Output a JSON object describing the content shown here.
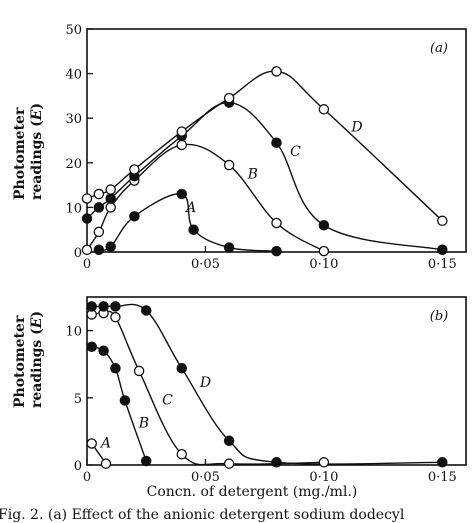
{
  "figure": {
    "xlabel": "Concn. of detergent (mg./ml.)",
    "caption": "Fig. 2. (a) Effect of the anionic detergent sodium dodecyl"
  },
  "chart_data": [
    {
      "type": "line",
      "panel_label": "(a)",
      "ylabel": [
        "Photometer",
        "readings (E)"
      ],
      "xlim": [
        0,
        0.16
      ],
      "ylim": [
        0,
        50
      ],
      "x_ticks": [
        0,
        0.05,
        0.1,
        0.15
      ],
      "x_tick_labels": [
        "0",
        "0·05",
        "0·10",
        "0·15"
      ],
      "y_ticks": [
        0,
        10,
        20,
        30,
        40,
        50
      ],
      "y_tick_labels": [
        "0",
        "10",
        "20",
        "30",
        "40",
        "50"
      ],
      "grid": false,
      "series": [
        {
          "name": "A",
          "marker": "filled",
          "x": [
            0.005,
            0.01,
            0.02,
            0.04,
            0.045,
            0.06,
            0.08
          ],
          "y": [
            0.5,
            1.2,
            8.0,
            13.0,
            5.0,
            1.0,
            0.2
          ]
        },
        {
          "name": "B",
          "marker": "open",
          "x": [
            0.0,
            0.005,
            0.01,
            0.02,
            0.04,
            0.06,
            0.08,
            0.1
          ],
          "y": [
            0.5,
            4.5,
            10.0,
            16.0,
            24.0,
            19.5,
            6.5,
            0.2
          ]
        },
        {
          "name": "C",
          "marker": "filled",
          "x": [
            0.0,
            0.005,
            0.01,
            0.02,
            0.04,
            0.06,
            0.08,
            0.1,
            0.15
          ],
          "y": [
            7.5,
            10.0,
            12.0,
            17.0,
            26.0,
            33.5,
            24.5,
            6.0,
            0.5
          ]
        },
        {
          "name": "D",
          "marker": "open",
          "x": [
            0.0,
            0.005,
            0.01,
            0.02,
            0.04,
            0.06,
            0.08,
            0.1,
            0.15
          ],
          "y": [
            12.0,
            13.0,
            14.0,
            18.5,
            27.0,
            34.5,
            40.5,
            32.0,
            7.0
          ]
        }
      ],
      "curve_labels": [
        {
          "text": "A",
          "x": 0.044,
          "y": 9.0
        },
        {
          "text": "B",
          "x": 0.07,
          "y": 16.5
        },
        {
          "text": "C",
          "x": 0.088,
          "y": 21.5
        },
        {
          "text": "D",
          "x": 0.114,
          "y": 27.0
        }
      ]
    },
    {
      "type": "line",
      "panel_label": "(b)",
      "ylabel": [
        "Photometer",
        "readings (E)"
      ],
      "xlim": [
        0,
        0.16
      ],
      "ylim": [
        0,
        12.5
      ],
      "x_ticks": [
        0,
        0.05,
        0.1,
        0.15
      ],
      "x_tick_labels": [
        "0",
        "0·05",
        "0·10",
        "0·15"
      ],
      "y_ticks": [
        0,
        5,
        10
      ],
      "y_tick_labels": [
        "0",
        "5",
        "10"
      ],
      "grid": false,
      "series": [
        {
          "name": "A",
          "marker": "open",
          "x": [
            0.002,
            0.008
          ],
          "y": [
            1.6,
            0.1
          ]
        },
        {
          "name": "B",
          "marker": "filled",
          "x": [
            0.002,
            0.007,
            0.012,
            0.016,
            0.025
          ],
          "y": [
            8.8,
            8.5,
            7.2,
            4.8,
            0.3
          ]
        },
        {
          "name": "C",
          "marker": "open",
          "x": [
            0.002,
            0.007,
            0.012,
            0.022,
            0.04,
            0.06,
            0.1
          ],
          "y": [
            11.2,
            11.3,
            11.0,
            7.0,
            0.8,
            0.1,
            0.2
          ]
        },
        {
          "name": "D",
          "marker": "filled",
          "x": [
            0.002,
            0.007,
            0.012,
            0.025,
            0.04,
            0.06,
            0.08,
            0.15
          ],
          "y": [
            11.8,
            11.8,
            11.8,
            11.5,
            7.2,
            1.8,
            0.2,
            0.2
          ]
        }
      ],
      "curve_labels": [
        {
          "text": "A",
          "x": 0.008,
          "y": 1.3
        },
        {
          "text": "B",
          "x": 0.024,
          "y": 2.8
        },
        {
          "text": "C",
          "x": 0.034,
          "y": 4.5
        },
        {
          "text": "D",
          "x": 0.05,
          "y": 5.8
        }
      ]
    }
  ]
}
